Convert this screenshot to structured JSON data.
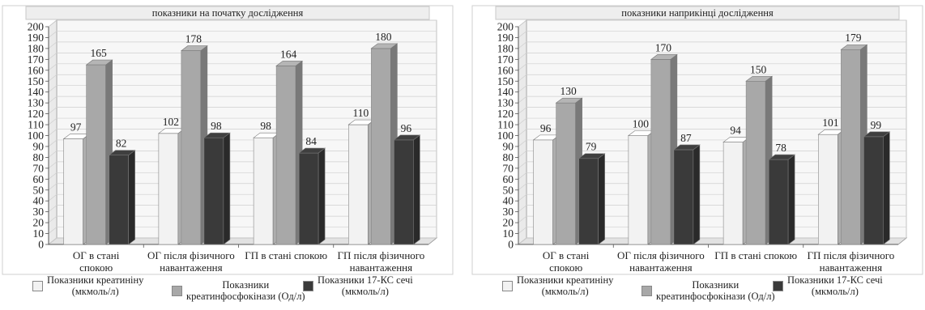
{
  "chart_data": [
    {
      "type": "bar",
      "title": "показники на початку дослідження",
      "categories": [
        "ОГ в стані\nспокою",
        "ОГ після фізичного\nнавантаження",
        "ГП в стані спокою",
        "ГП після фізичного\nнавантаження"
      ],
      "series": [
        {
          "name": "Показники креатиніну\n(мкмоль/л)",
          "values": [
            97,
            102,
            98,
            110
          ],
          "color": "#f2f2f2"
        },
        {
          "name": "Показники\nкреатинфосфокінази (Од/л)",
          "values": [
            165,
            178,
            164,
            180
          ],
          "color": "#a8a8a8"
        },
        {
          "name": "Показники 17-КС сечі\n(мкмоль/л)",
          "values": [
            82,
            98,
            84,
            96
          ],
          "color": "#3a3a3a"
        }
      ],
      "yticks": [
        "0",
        "10",
        "20",
        "30",
        "40",
        "50",
        "60",
        "70",
        "80",
        "90",
        "100",
        "110",
        "120",
        "130",
        "140",
        "150",
        "160",
        "170",
        "180",
        "190",
        "200"
      ],
      "ylim": [
        0,
        200
      ],
      "grid": true,
      "legend": "bottom"
    },
    {
      "type": "bar",
      "title": "показники наприкінці дослідження",
      "categories": [
        "ОГ в стані\nспокою",
        "ОГ після фізичного\nнавантаження",
        "ГП в стані спокою",
        "ГП після фізичного\nнавантаження"
      ],
      "series": [
        {
          "name": "Показники креатиніну\n(мкмоль/л)",
          "values": [
            96,
            100,
            94,
            101
          ],
          "color": "#f2f2f2"
        },
        {
          "name": "Показники\nкреатинфосфокінази (Од/л)",
          "values": [
            130,
            170,
            150,
            179
          ],
          "color": "#a8a8a8"
        },
        {
          "name": "Показники 17-КС сечі\n(мкмоль/л)",
          "values": [
            79,
            87,
            78,
            99
          ],
          "color": "#3a3a3a"
        }
      ],
      "yticks": [
        "0",
        "10",
        "20",
        "30",
        "40",
        "50",
        "60",
        "70",
        "80",
        "90",
        "100",
        "110",
        "120",
        "130",
        "140",
        "150",
        "160",
        "170",
        "180",
        "190",
        "200"
      ],
      "ylim": [
        0,
        200
      ],
      "grid": true,
      "legend": "bottom"
    }
  ]
}
